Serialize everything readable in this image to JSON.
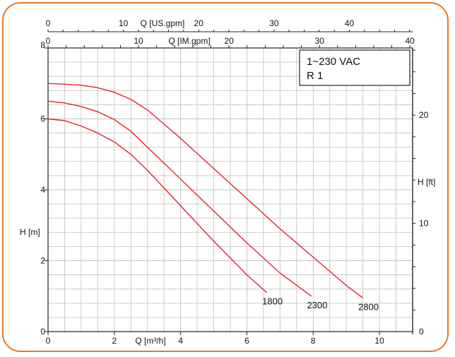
{
  "chart_data": {
    "type": "line",
    "x_axis_bottom": {
      "label": "Q [m³/h]",
      "min": 0,
      "max": 11,
      "ticks": [
        "0",
        "2",
        "4",
        "6",
        "8",
        "10"
      ]
    },
    "x_axis_top_1": {
      "label": "Q [US.gpm]",
      "min": 0,
      "max": 48.4,
      "ticks": [
        "0",
        "10",
        "20",
        "30",
        "40"
      ]
    },
    "x_axis_top_2": {
      "label": "Q [IM.gpm]",
      "min": 0,
      "max": 40.3,
      "ticks": [
        "0",
        "10",
        "20",
        "30",
        "40"
      ]
    },
    "y_axis_left": {
      "label": "H [m]",
      "min": 0,
      "max": 8,
      "ticks": [
        "0",
        "2",
        "4",
        "6",
        "8"
      ]
    },
    "y_axis_right": {
      "label": "H [ft]",
      "min": 0,
      "max": 26.2,
      "ticks": [
        "0",
        "10",
        "20"
      ]
    },
    "legend": {
      "lines": [
        "1~230 VAC",
        "R 1"
      ]
    },
    "grid": true,
    "series": [
      {
        "name": "1800",
        "points": [
          [
            0,
            6.0
          ],
          [
            0.5,
            5.95
          ],
          [
            1,
            5.8
          ],
          [
            1.5,
            5.6
          ],
          [
            2,
            5.35
          ],
          [
            2.5,
            5.0
          ],
          [
            3,
            4.55
          ],
          [
            3.5,
            4.05
          ],
          [
            4,
            3.55
          ],
          [
            5,
            2.55
          ],
          [
            6,
            1.6
          ],
          [
            6.6,
            1.1
          ]
        ]
      },
      {
        "name": "2300",
        "points": [
          [
            0,
            6.5
          ],
          [
            0.5,
            6.45
          ],
          [
            1,
            6.35
          ],
          [
            1.5,
            6.2
          ],
          [
            2,
            5.98
          ],
          [
            2.5,
            5.65
          ],
          [
            3,
            5.2
          ],
          [
            3.5,
            4.75
          ],
          [
            4,
            4.3
          ],
          [
            5,
            3.4
          ],
          [
            6,
            2.5
          ],
          [
            7,
            1.65
          ],
          [
            7.95,
            1.0
          ]
        ]
      },
      {
        "name": "2800",
        "points": [
          [
            0,
            7.0
          ],
          [
            0.5,
            6.98
          ],
          [
            1,
            6.95
          ],
          [
            1.5,
            6.88
          ],
          [
            2,
            6.75
          ],
          [
            2.5,
            6.55
          ],
          [
            3,
            6.25
          ],
          [
            3.5,
            5.85
          ],
          [
            4,
            5.45
          ],
          [
            5,
            4.6
          ],
          [
            6,
            3.75
          ],
          [
            7,
            2.9
          ],
          [
            8,
            2.1
          ],
          [
            9,
            1.3
          ],
          [
            9.5,
            0.95
          ]
        ]
      }
    ]
  }
}
